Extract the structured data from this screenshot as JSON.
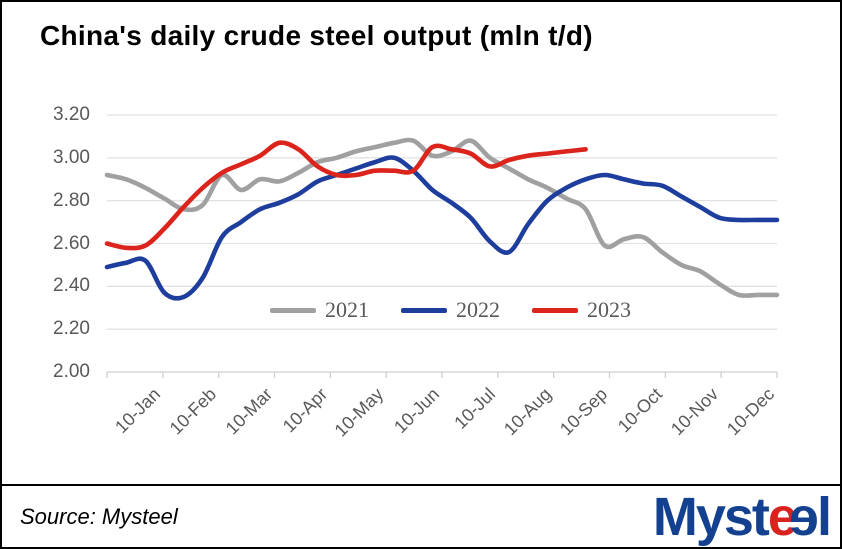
{
  "header": {
    "title": "China's daily crude steel output (mln t/d)"
  },
  "chart_data": {
    "type": "line",
    "title": "China's daily crude steel output (mln t/d)",
    "ylabel": "",
    "xlabel": "",
    "ylim": [
      2.0,
      3.2
    ],
    "y_ticks": [
      "3.20",
      "3.00",
      "2.80",
      "2.60",
      "2.40",
      "2.20",
      "2.00"
    ],
    "x_categories": [
      "10-Jan",
      "10-Feb",
      "10-Mar",
      "10-Apr",
      "10-May",
      "10-Jun",
      "10-Jul",
      "10-Aug",
      "10-Sep",
      "10-Oct",
      "10-Nov",
      "10-Dec"
    ],
    "points_per_month": 3,
    "grid": "horizontal",
    "legend_position": "center-inside",
    "series": [
      {
        "name": "2021",
        "color": "#A0A0A0",
        "values": [
          2.92,
          2.9,
          2.86,
          2.81,
          2.76,
          2.78,
          2.92,
          2.85,
          2.9,
          2.89,
          2.93,
          2.98,
          3.0,
          3.03,
          3.05,
          3.07,
          3.08,
          3.01,
          3.03,
          3.08,
          3.0,
          2.95,
          2.9,
          2.86,
          2.81,
          2.76,
          2.59,
          2.62,
          2.63,
          2.56,
          2.5,
          2.47,
          2.41,
          2.36,
          2.36,
          2.36
        ]
      },
      {
        "name": "2022",
        "color": "#1E3E9E",
        "values": [
          2.49,
          2.51,
          2.52,
          2.37,
          2.35,
          2.44,
          2.63,
          2.7,
          2.76,
          2.79,
          2.83,
          2.89,
          2.92,
          2.95,
          2.98,
          3.0,
          2.94,
          2.85,
          2.79,
          2.72,
          2.61,
          2.56,
          2.69,
          2.8,
          2.86,
          2.9,
          2.92,
          2.9,
          2.88,
          2.87,
          2.82,
          2.77,
          2.72,
          2.71,
          2.71,
          2.71
        ]
      },
      {
        "name": "2023",
        "color": "#DB241B",
        "values": [
          2.6,
          2.58,
          2.59,
          2.67,
          2.77,
          2.86,
          2.93,
          2.97,
          3.01,
          3.07,
          3.04,
          2.96,
          2.92,
          2.92,
          2.94,
          2.94,
          2.94,
          3.05,
          3.04,
          3.02,
          2.96,
          2.99,
          3.01,
          3.02,
          3.03,
          3.04
        ]
      }
    ]
  },
  "footer": {
    "source_label": "Source: Mysteel",
    "logo": {
      "part1": "Myst",
      "part2": "e",
      "part3": "e",
      "part4": "l"
    }
  }
}
